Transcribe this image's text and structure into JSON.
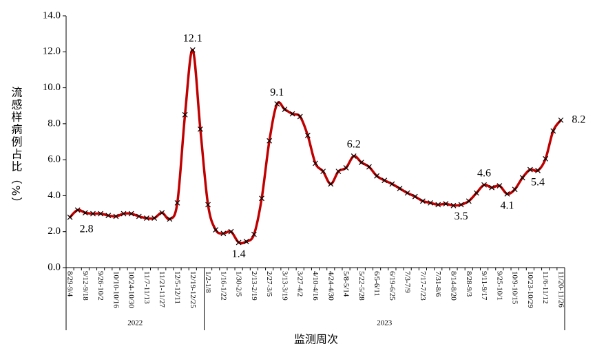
{
  "chart_data": {
    "type": "line",
    "y_label": "流感样病例占比（%）",
    "x_label": "监测周次",
    "ylim": [
      0,
      14
    ],
    "yticks": [
      {
        "value": 0,
        "label": "0.0"
      },
      {
        "value": 2,
        "label": "2.0"
      },
      {
        "value": 4,
        "label": "4.0"
      },
      {
        "value": 6,
        "label": "6.0"
      },
      {
        "value": 8,
        "label": "8.0"
      },
      {
        "value": 10,
        "label": "10.0"
      },
      {
        "value": 12,
        "label": "12.0"
      },
      {
        "value": 14,
        "label": "14.0"
      }
    ],
    "category_groups": [
      {
        "label": "2022",
        "categories": [
          "8/29-9/4",
          null,
          "9/12-9/18",
          null,
          "9/26-10/2",
          null,
          "10/10-10/16",
          null,
          "10/24-10/30",
          null,
          "11/7-11/13",
          null,
          "11/21-11/27",
          null,
          "12/5-12/11",
          null,
          "12/19-12/25",
          null
        ]
      },
      {
        "label": "2023",
        "categories": [
          "1/2-1/8",
          null,
          "1/16-1/22",
          null,
          "1/30-2/5",
          null,
          "2/13-2/19",
          null,
          "2/27-3/5",
          null,
          "3/13-3/19",
          null,
          "3/27-4/2",
          null,
          "4/10-4/16",
          null,
          "4/24-4/30",
          null,
          "5/8-5/14",
          null,
          "5/22-5/28",
          null,
          "6/5-6/11",
          null,
          "6/19-6/25",
          null,
          "7/3-7/9",
          null,
          "7/17-7/23",
          null,
          "7/31-8/6",
          null,
          "8/14-8/20",
          null,
          "8/28-9/3",
          null,
          "9/11-9/17",
          null,
          "9/25-10/1",
          null,
          "10/9-10/15",
          null,
          "10/23-10/29",
          null,
          "11/6-11/12",
          null,
          "11/20-11/26"
        ]
      }
    ],
    "color": "#c00000",
    "values": [
      2.8,
      3.2,
      3.05,
      3.0,
      3.0,
      2.9,
      2.85,
      3.0,
      3.0,
      2.85,
      2.75,
      2.75,
      3.05,
      2.7,
      3.6,
      8.5,
      12.1,
      7.7,
      3.5,
      2.1,
      1.9,
      2.0,
      1.4,
      1.45,
      1.85,
      3.85,
      7.05,
      9.1,
      8.8,
      8.55,
      8.4,
      7.35,
      5.8,
      5.35,
      4.65,
      5.35,
      5.55,
      6.2,
      5.85,
      5.6,
      5.1,
      4.85,
      4.65,
      4.4,
      4.15,
      3.95,
      3.7,
      3.6,
      3.5,
      3.55,
      3.45,
      3.5,
      3.7,
      4.15,
      4.6,
      4.45,
      4.55,
      4.1,
      4.35,
      5.0,
      5.45,
      5.4,
      6.05,
      7.6,
      8.2
    ],
    "value_labels": [
      "2.8",
      null,
      null,
      null,
      null,
      null,
      null,
      null,
      null,
      null,
      null,
      null,
      null,
      null,
      null,
      null,
      "12.1",
      null,
      null,
      null,
      null,
      null,
      "1.4",
      null,
      null,
      null,
      null,
      "9.1",
      null,
      null,
      null,
      null,
      null,
      null,
      null,
      null,
      null,
      "6.2",
      null,
      null,
      null,
      null,
      null,
      null,
      null,
      null,
      null,
      null,
      null,
      null,
      null,
      "3.5",
      null,
      null,
      "4.6",
      null,
      null,
      "4.1",
      null,
      null,
      null,
      "5.4",
      null,
      null,
      "8.2"
    ]
  }
}
